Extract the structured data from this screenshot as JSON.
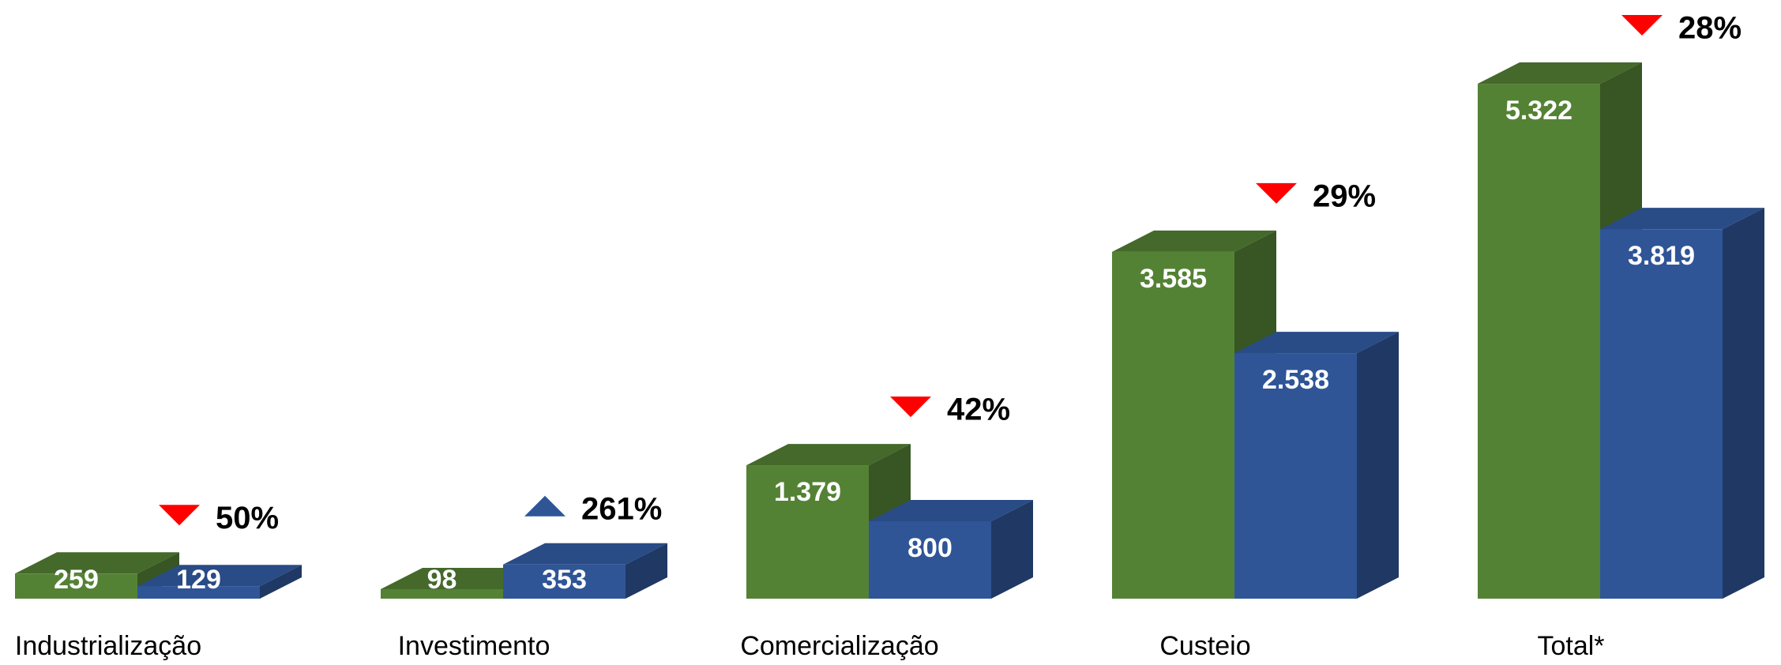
{
  "chart_data": {
    "type": "bar3d",
    "categories": [
      "Industrialização",
      "Investimento",
      "Comercialização",
      "Custeio",
      "Total*"
    ],
    "series": [
      {
        "color": "#548235",
        "top_color": "#44692b",
        "side_color": "#375623",
        "values": [
          259,
          98,
          1379,
          3585,
          5322
        ],
        "value_labels": [
          "259",
          "98",
          "1.379",
          "3.585",
          "5.322"
        ]
      },
      {
        "color": "#2f5597",
        "top_color": "#294b86",
        "side_color": "#203864",
        "values": [
          129,
          353,
          800,
          2538,
          3819
        ],
        "value_labels": [
          "129",
          "353",
          "800",
          "2.538",
          "3.819"
        ]
      }
    ],
    "changes": [
      {
        "label": "50%",
        "direction": "down"
      },
      {
        "label": "261%",
        "direction": "up"
      },
      {
        "label": "42%",
        "direction": "down"
      },
      {
        "label": "29%",
        "direction": "down"
      },
      {
        "label": "28%",
        "direction": "down"
      }
    ],
    "arrow_colors": {
      "down": "#ff0000",
      "up": "#2f5597"
    },
    "ylim": [
      0,
      6000
    ]
  }
}
